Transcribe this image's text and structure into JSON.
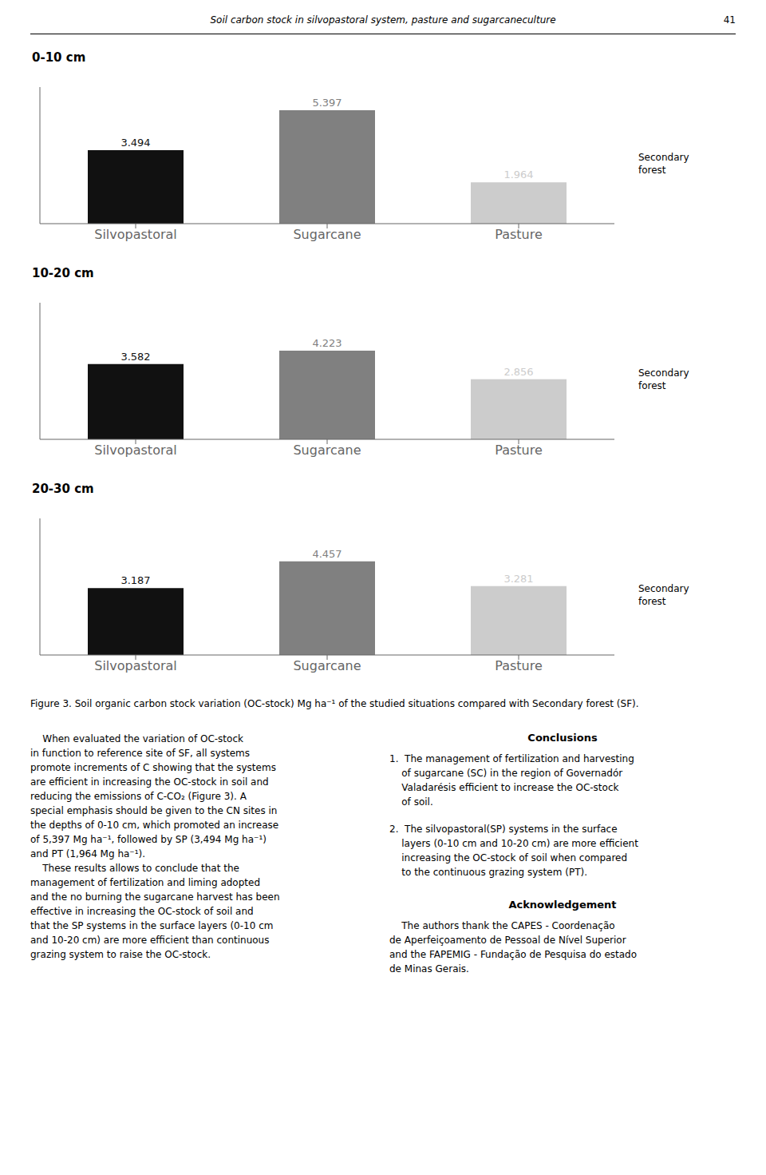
{
  "title": "Soil carbon stock in silvopastoral system, pasture and sugarcaneculture",
  "annotations": [
    "41",
    "Figure 3. Soil organic carbon stock variation (OC-stock) Mg ha⁻¹ of the studied situations compared with Secondary forest (SF).",
    "    When evaluated the variation of ​OC-stock\nin function to reference site of SF, all systems\npromote increments of ​C showing that the systems\nare efficient in increasing the ​OC-stock in soil and\nreducing the emissions of C-CO₂ (Figure 3). A\nspecial emphasis should be given to the CN sites in\nthe depths of 0-10 cm, which promoted an increase\nof 5,397 Mg ha⁻¹, followed by SP (3,494 Mg ha⁻¹)\nand PT (1,964 Mg ha⁻¹).\n    These results allows to conclude that the\nmanagement of fertilization and liming adopted\nand the no burning the sugarcane harvest has been\neffective in increasing the ​OC-stock of soil and\nthat the SP systems in the surface layers (0-10 cm\nand 10-20 cm) are more efficient than continuous\ngrazing system to raise the ​OC-stock.",
    "Conclusions",
    "1.  The management of fertilization and harvesting\n    of sugarcane (SC) in the region of ​Governadór\n    ​Valadarésis efficient to increase the ​OC-stock\n    of soil.",
    "2.  The silvopastoral(SP) systems in the surface\n    layers (0-10 cm and 10-20 cm) are more efficient\n    increasing the ​OC-stock of soil when compared\n    to the continuous grazing system (PT).",
    "Acknowledgement",
    "    The authors thank the CAPES - Coordenação\nde Aperfeiçoamento de Pessoal de Nível Superior\nand the FAPEMIG - Fundação de Pesquisa do estado\nde Minas Gerais."
  ],
  "chart_data": [
    {
      "type": "bar",
      "title": "0-10 cm",
      "categories": [
        "Silvopastoral",
        "Sugarcane",
        "Pasture"
      ],
      "values": [
        3.494,
        5.397,
        1.964
      ],
      "colors": [
        "#111111",
        "#808080",
        "#cccccc"
      ],
      "ylim": [
        0,
        6.5
      ],
      "data_labels": true,
      "tick_labels": "x",
      "grid": false,
      "annotations": [
        "Secondary\nforest"
      ]
    },
    {
      "type": "bar",
      "title": "10-20 cm",
      "categories": [
        "Silvopastoral",
        "Sugarcane",
        "Pasture"
      ],
      "values": [
        3.582,
        4.223,
        2.856
      ],
      "colors": [
        "#111111",
        "#808080",
        "#cccccc"
      ],
      "ylim": [
        0,
        6.5
      ],
      "data_labels": true,
      "tick_labels": "x",
      "grid": false,
      "annotations": [
        "Secondary\nforest"
      ]
    },
    {
      "type": "bar",
      "title": "20-30 cm",
      "categories": [
        "Silvopastoral",
        "Sugarcane",
        "Pasture"
      ],
      "values": [
        3.187,
        4.457,
        3.281
      ],
      "colors": [
        "#111111",
        "#808080",
        "#cccccc"
      ],
      "ylim": [
        0,
        6.5
      ],
      "data_labels": true,
      "tick_labels": "x",
      "grid": false,
      "annotations": [
        "Secondary\nforest"
      ]
    }
  ]
}
